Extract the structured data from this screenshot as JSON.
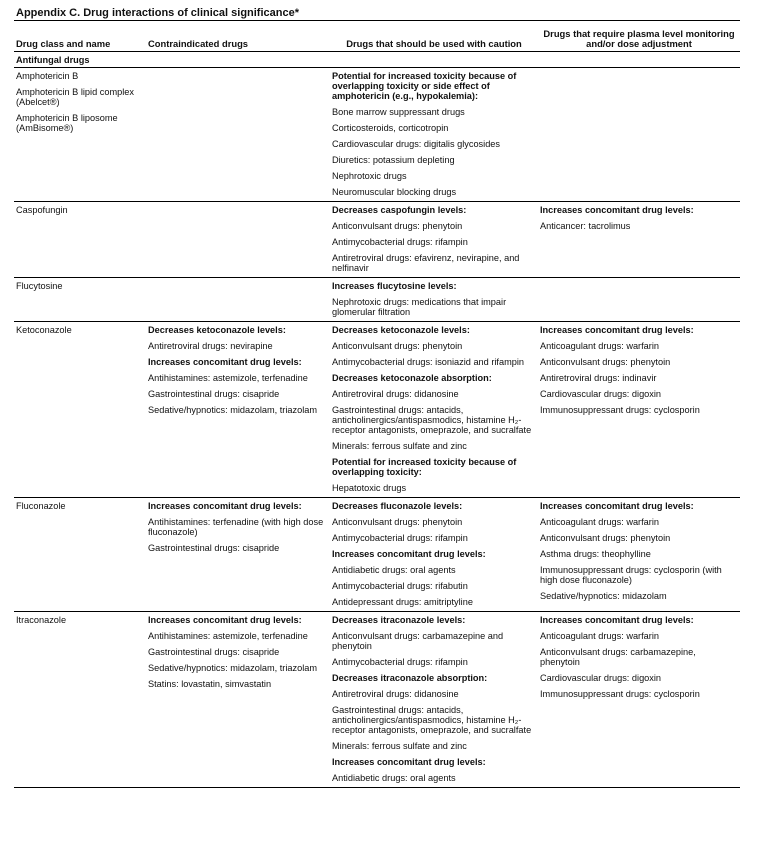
{
  "title": "Appendix C.  Drug interactions of clinical significance*",
  "headers": [
    "Drug class and name",
    "Contraindicated  drugs",
    "Drugs that should be used with caution",
    "Drugs that require plasma level monitoring and/or dose adjustment"
  ],
  "group": "Antifungal  drugs",
  "rows": [
    {
      "cells": [
        [
          {
            "t": "Amphotericin B"
          },
          {
            "t": "Amphotericin B lipid complex (Abelcet®)"
          },
          {
            "t": "Amphotericin B liposome (AmBisome®)"
          }
        ],
        [],
        [
          {
            "t": "Potential for increased toxicity because of overlapping toxicity or side effect of amphotericin (e.g., hypokalemia):",
            "b": true
          },
          {
            "t": "Bone marrow suppressant drugs"
          },
          {
            "t": "Corticosteroids, corticotropin"
          },
          {
            "t": "Cardiovascular drugs: digitalis glycosides"
          },
          {
            "t": "Diuretics: potassium depleting"
          },
          {
            "t": "Nephrotoxic drugs"
          },
          {
            "t": "Neuromuscular blocking drugs"
          }
        ],
        []
      ]
    },
    {
      "cells": [
        [
          {
            "t": "Caspofungin"
          }
        ],
        [],
        [
          {
            "t": "Decreases caspofungin levels:",
            "b": true
          },
          {
            "t": "Anticonvulsant drugs: phenytoin"
          },
          {
            "t": "Antimycobacterial drugs: rifampin"
          },
          {
            "t": "Antiretroviral drugs: efavirenz, nevirapine, and nelfinavir"
          }
        ],
        [
          {
            "t": "Increases concomitant drug levels:",
            "b": true
          },
          {
            "t": "Anticancer: tacrolimus"
          }
        ]
      ]
    },
    {
      "cells": [
        [
          {
            "t": "Flucytosine"
          }
        ],
        [],
        [
          {
            "t": "Increases flucytosine levels:",
            "b": true
          },
          {
            "t": "Nephrotoxic drugs: medications that impair glomerular filtration"
          }
        ],
        []
      ]
    },
    {
      "cells": [
        [
          {
            "t": "Ketoconazole"
          }
        ],
        [
          {
            "t": "Decreases ketoconazole levels:",
            "b": true
          },
          {
            "t": "Antiretroviral drugs: nevirapine"
          },
          {
            "t": "Increases concomitant drug levels:",
            "b": true
          },
          {
            "t": "Antihistamines: astemizole, terfenadine"
          },
          {
            "t": "Gastrointestinal drugs: cisapride"
          },
          {
            "t": "Sedative/hypnotics:  midazolam, triazolam"
          }
        ],
        [
          {
            "t": "Decreases ketoconazole levels:",
            "b": true
          },
          {
            "t": "Anticonvulsant drugs: phenytoin"
          },
          {
            "t": "Antimycobacterial drugs: isoniazid and rifampin"
          },
          {
            "t": "Decreases ketoconazole absorption:",
            "b": true
          },
          {
            "t": "Antiretroviral drugs: didanosine"
          },
          {
            "t": "Gastrointestinal drugs: antacids, anticholinergics/antispasmodics, histamine H₂-receptor antagonists, omeprazole, and sucralfate"
          },
          {
            "t": "Minerals: ferrous sulfate and zinc"
          },
          {
            "t": "Potential for increased toxicity because of overlapping toxicity:",
            "b": true
          },
          {
            "t": "Hepatotoxic drugs"
          }
        ],
        [
          {
            "t": "Increases concomitant drug levels:",
            "b": true
          },
          {
            "t": "Anticoagulant drugs: warfarin"
          },
          {
            "t": "Anticonvulsant drugs: phenytoin"
          },
          {
            "t": "Antiretroviral drugs: indinavir"
          },
          {
            "t": "Cardiovascular drugs: digoxin"
          },
          {
            "t": "Immunosuppressant drugs: cyclosporin"
          }
        ]
      ]
    },
    {
      "cells": [
        [
          {
            "t": "Fluconazole"
          }
        ],
        [
          {
            "t": "Increases concomitant drug levels:",
            "b": true
          },
          {
            "t": "Antihistamines: terfenadine (with high dose fluconazole)"
          },
          {
            "t": "Gastrointestinal drugs: cisapride"
          }
        ],
        [
          {
            "t": "Decreases fluconazole levels:",
            "b": true
          },
          {
            "t": "Anticonvulsant drugs: phenytoin"
          },
          {
            "t": "Antimycobacterial drugs: rifampin"
          },
          {
            "t": "Increases concomitant drug levels:",
            "b": true
          },
          {
            "t": "Antidiabetic drugs: oral agents"
          },
          {
            "t": "Antimycobacterial drugs: rifabutin"
          },
          {
            "t": "Antidepressant drugs: amitriptyline"
          }
        ],
        [
          {
            "t": "Increases concomitant drug levels:",
            "b": true
          },
          {
            "t": "Anticoagulant drugs: warfarin"
          },
          {
            "t": "Anticonvulsant drugs: phenytoin"
          },
          {
            "t": "Asthma drugs: theophylline"
          },
          {
            "t": "Immunosuppressant drugs: cyclosporin (with high dose fluconazole)"
          },
          {
            "t": "Sedative/hypnotics: midazolam"
          }
        ]
      ]
    },
    {
      "cells": [
        [
          {
            "t": "Itraconazole"
          }
        ],
        [
          {
            "t": "Increases concomitant drug levels:",
            "b": true
          },
          {
            "t": "Antihistamines: astemizole, terfenadine"
          },
          {
            "t": "Gastrointestinal drugs: cisapride"
          },
          {
            "t": "Sedative/hypnotics:  midazolam, triazolam"
          },
          {
            "t": "Statins:  lovastatin, simvastatin"
          }
        ],
        [
          {
            "t": "Decreases itraconazole levels:",
            "b": true
          },
          {
            "t": "Anticonvulsant drugs: carbamazepine and phenytoin"
          },
          {
            "t": "Antimycobacterial drugs: rifampin"
          },
          {
            "t": "Decreases itraconazole absorption:",
            "b": true
          },
          {
            "t": "Antiretroviral drugs: didanosine"
          },
          {
            "t": "Gastrointestinal drugs: antacids, anticholinergics/antispasmodics, histamine H₂-receptor antagonists, omeprazole, and sucralfate"
          },
          {
            "t": "Minerals: ferrous sulfate and zinc"
          },
          {
            "t": "Increases concomitant drug levels:",
            "b": true
          },
          {
            "t": "Antidiabetic drugs: oral agents"
          }
        ],
        [
          {
            "t": "Increases concomitant drug levels:",
            "b": true
          },
          {
            "t": "Anticoagulant drugs: warfarin"
          },
          {
            "t": "Anticonvulsant drugs: carbamazepine, phenytoin"
          },
          {
            "t": "Cardiovascular drugs: digoxin"
          },
          {
            "t": "Immunosuppressant drugs: cyclosporin"
          }
        ]
      ]
    }
  ]
}
